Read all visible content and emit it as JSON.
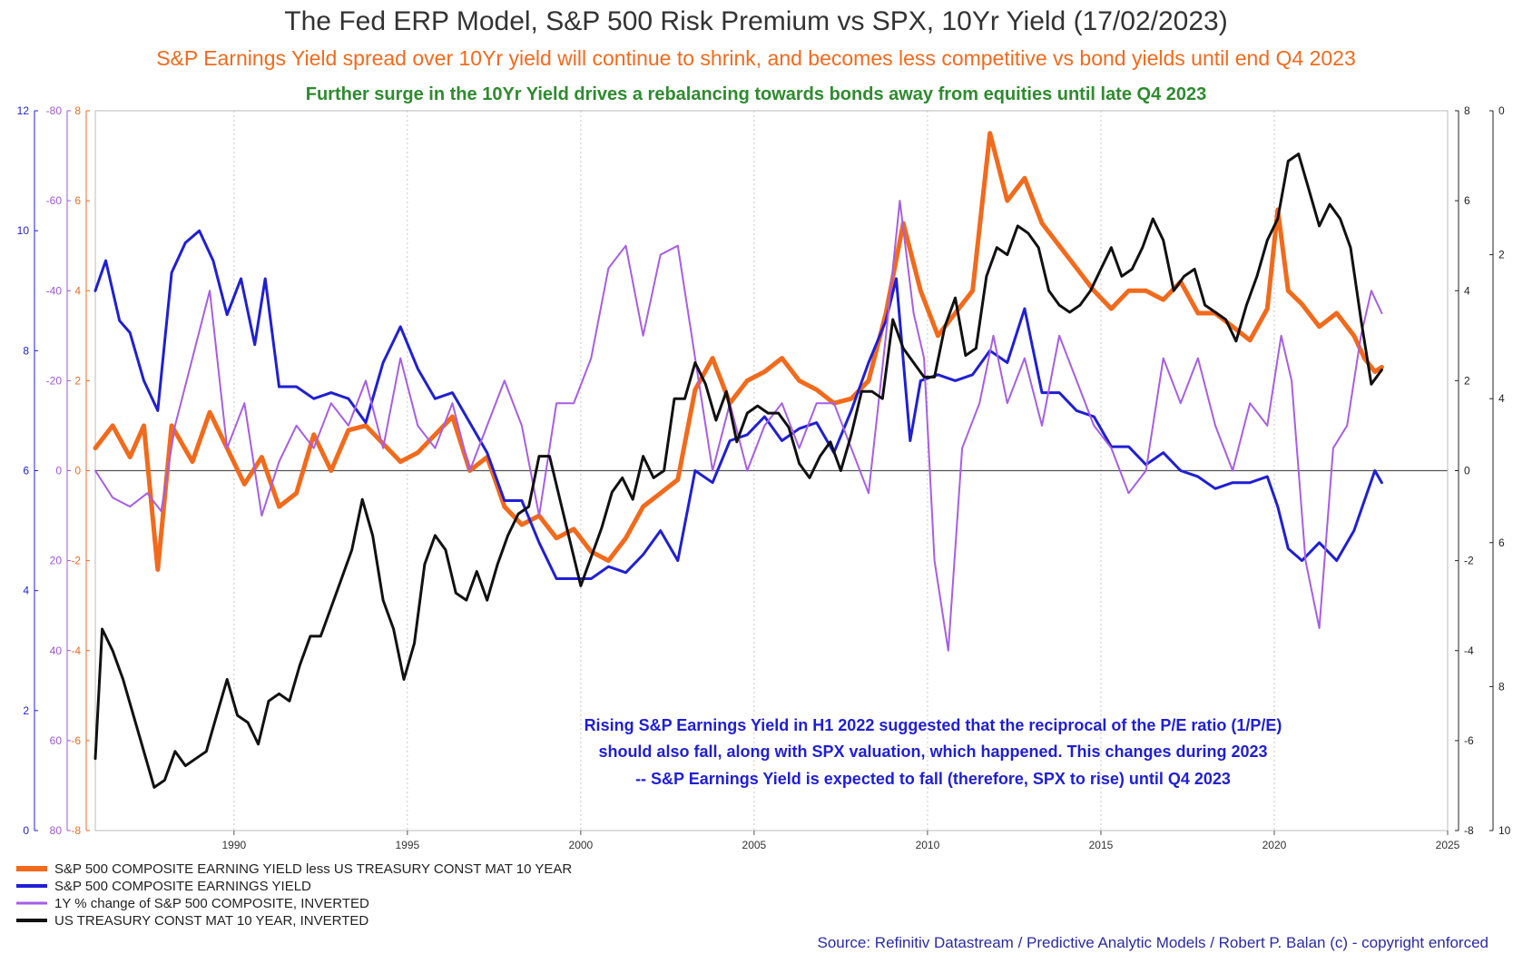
{
  "title": "The Fed ERP Model, S&P 500 Risk Premium vs SPX, 10Yr Yield (17/02/2023)",
  "subtitle": "S&P Earnings Yield spread over 10Yr yield will continue to shrink, and becomes less competitive vs bond yields until end Q4 2023",
  "subtitle2": "Further surge in the 10Yr Yield drives a rebalancing towards bonds away from equities until late Q4 2023",
  "annotation": [
    "Rising S&P Earnings Yield in H1 2022 suggested that the reciprocal of the P/E ratio (1/P/E)",
    "should also fall, along with SPX valuation, which happened. This changes during 2023",
    "-- S&P Earnings Yield is expected to fall (therefore, SPX to rise) until Q4 2023"
  ],
  "source": "Source: Refinitiv Datastream / Predictive Analytic Models / Robert P. Balan (c) - copyright enforced",
  "chart_data": {
    "type": "line",
    "xlim": [
      1986,
      2025
    ],
    "x_ticks": [
      "1990",
      "1995",
      "2000",
      "2005",
      "2010",
      "2015",
      "2020",
      "2025"
    ],
    "axes": {
      "earnings_yield": {
        "side": "left-outer",
        "color": "#1f1fd6",
        "ylim": [
          0,
          12
        ],
        "ticks": [
          "0",
          "2",
          "4",
          "6",
          "8",
          "10",
          "12"
        ]
      },
      "pct_change_inverted": {
        "side": "left-middle",
        "color": "#9b59d6",
        "ylim": [
          80,
          -80
        ],
        "ticks": [
          "80",
          "60",
          "40",
          "20",
          "0",
          "-20",
          "-40",
          "-60",
          "-80"
        ]
      },
      "spread": {
        "side": "left-inner",
        "color": "#f26a1b",
        "ylim": [
          -8,
          8
        ],
        "ticks": [
          "-8",
          "-6",
          "-4",
          "-2",
          "0",
          "2",
          "4",
          "6",
          "8"
        ]
      },
      "right_inner": {
        "side": "right-inner",
        "color": "#222222",
        "ylim": [
          -8,
          8
        ],
        "ticks": [
          "-8",
          "-6",
          "-4",
          "-2",
          "0",
          "2",
          "4",
          "6",
          "8"
        ]
      },
      "treasury_inverted": {
        "side": "right-outer",
        "color": "#222222",
        "ylim": [
          10,
          0
        ],
        "ticks": [
          "10",
          "8",
          "6",
          "4",
          "2",
          "0"
        ]
      }
    },
    "zero_line": true,
    "grid": "vertical dotted",
    "legend_position": "bottom-left",
    "series": [
      {
        "name": "S&P 500 COMPOSITE EARNING YIELD less US TREASURY CONST MAT 10 YEAR",
        "color": "#f26a1b",
        "axis": "spread",
        "width": 5,
        "x": [
          1986.0,
          1986.5,
          1987.0,
          1987.4,
          1987.8,
          1988.2,
          1988.8,
          1989.3,
          1989.8,
          1990.3,
          1990.8,
          1991.3,
          1991.8,
          1992.3,
          1992.8,
          1993.3,
          1993.8,
          1994.3,
          1994.8,
          1995.3,
          1995.8,
          1996.3,
          1996.8,
          1997.3,
          1997.8,
          1998.3,
          1998.8,
          1999.3,
          1999.8,
          2000.3,
          2000.8,
          2001.3,
          2001.8,
          2002.3,
          2002.8,
          2003.3,
          2003.8,
          2004.3,
          2004.8,
          2005.3,
          2005.8,
          2006.3,
          2006.8,
          2007.3,
          2007.8,
          2008.3,
          2008.8,
          2009.3,
          2009.8,
          2010.3,
          2010.8,
          2011.3,
          2011.8,
          2012.3,
          2012.8,
          2013.3,
          2013.8,
          2014.3,
          2014.8,
          2015.3,
          2015.8,
          2016.3,
          2016.8,
          2017.3,
          2017.8,
          2018.3,
          2018.8,
          2019.3,
          2019.8,
          2020.1,
          2020.4,
          2020.8,
          2021.3,
          2021.8,
          2022.3,
          2022.6,
          2022.9,
          2023.1
        ],
        "y": [
          0.5,
          1.0,
          0.3,
          1.0,
          -2.2,
          1.0,
          0.2,
          1.3,
          0.5,
          -0.3,
          0.3,
          -0.8,
          -0.5,
          0.8,
          0.0,
          0.9,
          1.0,
          0.6,
          0.2,
          0.4,
          0.8,
          1.2,
          0.0,
          0.3,
          -0.8,
          -1.2,
          -1.0,
          -1.5,
          -1.3,
          -1.8,
          -2.0,
          -1.5,
          -0.8,
          -0.5,
          -0.2,
          1.8,
          2.5,
          1.5,
          2.0,
          2.2,
          2.5,
          2.0,
          1.8,
          1.5,
          1.6,
          2.0,
          3.5,
          5.5,
          4.0,
          3.0,
          3.5,
          4.0,
          7.5,
          6.0,
          6.5,
          5.5,
          5.0,
          4.5,
          4.0,
          3.6,
          4.0,
          4.0,
          3.8,
          4.2,
          3.5,
          3.5,
          3.2,
          2.9,
          3.6,
          5.8,
          4.0,
          3.7,
          3.2,
          3.5,
          3.0,
          2.5,
          2.2,
          2.3
        ]
      },
      {
        "name": "S&P 500 COMPOSITE EARNINGS YIELD",
        "color": "#1f1fd6",
        "axis": "earnings_yield",
        "width": 3,
        "x": [
          1986.0,
          1986.3,
          1986.7,
          1987.0,
          1987.4,
          1987.8,
          1988.2,
          1988.6,
          1989.0,
          1989.4,
          1989.8,
          1990.2,
          1990.6,
          1990.9,
          1991.3,
          1991.8,
          1992.3,
          1992.8,
          1993.3,
          1993.8,
          1994.3,
          1994.8,
          1995.3,
          1995.8,
          1996.3,
          1996.8,
          1997.3,
          1997.8,
          1998.3,
          1998.8,
          1999.3,
          1999.8,
          2000.3,
          2000.8,
          2001.3,
          2001.8,
          2002.3,
          2002.8,
          2003.3,
          2003.8,
          2004.3,
          2004.8,
          2005.3,
          2005.8,
          2006.3,
          2006.8,
          2007.3,
          2007.8,
          2008.3,
          2008.8,
          2009.1,
          2009.5,
          2009.8,
          2010.3,
          2010.8,
          2011.3,
          2011.8,
          2012.3,
          2012.8,
          2013.3,
          2013.8,
          2014.3,
          2014.8,
          2015.3,
          2015.8,
          2016.3,
          2016.8,
          2017.3,
          2017.8,
          2018.3,
          2018.8,
          2019.3,
          2019.8,
          2020.1,
          2020.4,
          2020.8,
          2021.3,
          2021.8,
          2022.3,
          2022.6,
          2022.9,
          2023.1
        ],
        "y": [
          9.0,
          9.5,
          8.5,
          8.3,
          7.5,
          7.0,
          9.3,
          9.8,
          10.0,
          9.5,
          8.6,
          9.2,
          8.1,
          9.2,
          7.4,
          7.4,
          7.2,
          7.3,
          7.2,
          6.8,
          7.8,
          8.4,
          7.7,
          7.2,
          7.3,
          6.8,
          6.3,
          5.5,
          5.5,
          4.8,
          4.2,
          4.2,
          4.2,
          4.4,
          4.3,
          4.6,
          5.0,
          4.5,
          6.0,
          5.8,
          6.5,
          6.6,
          6.9,
          6.5,
          6.7,
          6.8,
          6.3,
          7.0,
          7.8,
          8.5,
          9.2,
          6.5,
          7.5,
          7.6,
          7.5,
          7.6,
          8.0,
          7.8,
          8.7,
          7.3,
          7.3,
          7.0,
          6.9,
          6.4,
          6.4,
          6.1,
          6.3,
          6.0,
          5.9,
          5.7,
          5.8,
          5.8,
          5.9,
          5.4,
          4.7,
          4.5,
          4.8,
          4.5,
          5.0,
          5.5,
          6.0,
          5.8
        ]
      },
      {
        "name": "1Y % change of S&P 500 COMPOSITE, INVERTED",
        "color": "#a65ee6",
        "axis": "pct_change_inverted",
        "width": 2,
        "x": [
          1986.0,
          1986.5,
          1987.0,
          1987.5,
          1987.9,
          1988.3,
          1988.8,
          1989.3,
          1989.8,
          1990.3,
          1990.8,
          1991.3,
          1991.8,
          1992.3,
          1992.8,
          1993.3,
          1993.8,
          1994.3,
          1994.8,
          1995.3,
          1995.8,
          1996.3,
          1996.8,
          1997.3,
          1997.8,
          1998.3,
          1998.8,
          1999.3,
          1999.8,
          2000.3,
          2000.8,
          2001.3,
          2001.8,
          2002.3,
          2002.8,
          2003.3,
          2003.8,
          2004.3,
          2004.8,
          2005.3,
          2005.8,
          2006.3,
          2006.8,
          2007.3,
          2007.8,
          2008.3,
          2008.8,
          2009.2,
          2009.6,
          2009.9,
          2010.2,
          2010.6,
          2011.0,
          2011.5,
          2011.9,
          2012.3,
          2012.8,
          2013.3,
          2013.8,
          2014.3,
          2014.8,
          2015.3,
          2015.8,
          2016.3,
          2016.8,
          2017.3,
          2017.8,
          2018.3,
          2018.8,
          2019.3,
          2019.8,
          2020.2,
          2020.5,
          2020.9,
          2021.3,
          2021.7,
          2022.1,
          2022.5,
          2022.8,
          2023.1
        ],
        "y": [
          0,
          6,
          8,
          5,
          9,
          -10,
          -25,
          -40,
          -5,
          -15,
          10,
          -2,
          -10,
          -5,
          -15,
          -10,
          -20,
          -5,
          -25,
          -10,
          -5,
          -15,
          0,
          -10,
          -20,
          -10,
          10,
          -15,
          -15,
          -25,
          -45,
          -50,
          -30,
          -48,
          -50,
          -25,
          0,
          -15,
          0,
          -10,
          -15,
          -5,
          -15,
          -15,
          -5,
          5,
          -30,
          -60,
          -35,
          -25,
          20,
          40,
          -5,
          -15,
          -30,
          -15,
          -25,
          -10,
          -30,
          -20,
          -10,
          -5,
          5,
          0,
          -25,
          -15,
          -25,
          -10,
          0,
          -15,
          -10,
          -30,
          -20,
          20,
          35,
          -5,
          -10,
          -30,
          -40,
          -35
        ]
      },
      {
        "name": "US TREASURY CONST MAT 10 YEAR, INVERTED",
        "color": "#111111",
        "axis": "treasury_inverted",
        "width": 3,
        "x": [
          1986.0,
          1986.2,
          1986.5,
          1986.8,
          1987.1,
          1987.4,
          1987.7,
          1988.0,
          1988.3,
          1988.6,
          1988.9,
          1989.2,
          1989.5,
          1989.8,
          1990.1,
          1990.4,
          1990.7,
          1991.0,
          1991.3,
          1991.6,
          1991.9,
          1992.2,
          1992.5,
          1992.8,
          1993.1,
          1993.4,
          1993.7,
          1994.0,
          1994.3,
          1994.6,
          1994.9,
          1995.2,
          1995.5,
          1995.8,
          1996.1,
          1996.4,
          1996.7,
          1997.0,
          1997.3,
          1997.6,
          1997.9,
          1998.2,
          1998.5,
          1998.8,
          1999.1,
          1999.4,
          1999.7,
          2000.0,
          2000.3,
          2000.6,
          2000.9,
          2001.2,
          2001.5,
          2001.8,
          2002.1,
          2002.4,
          2002.7,
          2003.0,
          2003.3,
          2003.6,
          2003.9,
          2004.2,
          2004.5,
          2004.8,
          2005.1,
          2005.4,
          2005.7,
          2006.0,
          2006.3,
          2006.6,
          2006.9,
          2007.2,
          2007.5,
          2007.8,
          2008.1,
          2008.4,
          2008.7,
          2009.0,
          2009.3,
          2009.6,
          2009.9,
          2010.2,
          2010.5,
          2010.8,
          2011.1,
          2011.4,
          2011.7,
          2012.0,
          2012.3,
          2012.6,
          2012.9,
          2013.2,
          2013.5,
          2013.8,
          2014.1,
          2014.4,
          2014.7,
          2015.0,
          2015.3,
          2015.6,
          2015.9,
          2016.2,
          2016.5,
          2016.8,
          2017.1,
          2017.4,
          2017.7,
          2018.0,
          2018.3,
          2018.6,
          2018.9,
          2019.2,
          2019.5,
          2019.8,
          2020.1,
          2020.4,
          2020.7,
          2021.0,
          2021.3,
          2021.6,
          2021.9,
          2022.2,
          2022.5,
          2022.8,
          2023.1
        ],
        "y": [
          9.0,
          7.2,
          7.5,
          7.9,
          8.4,
          8.9,
          9.4,
          9.3,
          8.9,
          9.1,
          9.0,
          8.9,
          8.4,
          7.9,
          8.4,
          8.5,
          8.8,
          8.2,
          8.1,
          8.2,
          7.7,
          7.3,
          7.3,
          6.9,
          6.5,
          6.1,
          5.4,
          5.9,
          6.8,
          7.2,
          7.9,
          7.4,
          6.3,
          5.9,
          6.1,
          6.7,
          6.8,
          6.4,
          6.8,
          6.3,
          5.9,
          5.6,
          5.5,
          4.8,
          4.8,
          5.4,
          6.0,
          6.6,
          6.2,
          5.8,
          5.3,
          5.1,
          5.4,
          4.8,
          5.1,
          5.0,
          4.0,
          4.0,
          3.5,
          3.8,
          4.3,
          3.9,
          4.6,
          4.2,
          4.1,
          4.2,
          4.2,
          4.4,
          4.9,
          5.1,
          4.8,
          4.6,
          5.0,
          4.5,
          3.9,
          3.9,
          4.0,
          2.9,
          3.3,
          3.5,
          3.7,
          3.7,
          3.0,
          2.6,
          3.4,
          3.3,
          2.3,
          1.9,
          2.0,
          1.6,
          1.7,
          1.9,
          2.5,
          2.7,
          2.8,
          2.7,
          2.5,
          2.2,
          1.9,
          2.3,
          2.2,
          1.9,
          1.5,
          1.8,
          2.5,
          2.3,
          2.2,
          2.7,
          2.8,
          2.9,
          3.2,
          2.7,
          2.3,
          1.8,
          1.5,
          0.7,
          0.6,
          1.1,
          1.6,
          1.3,
          1.5,
          1.9,
          2.9,
          3.8,
          3.6
        ]
      }
    ]
  },
  "legend": [
    {
      "label": "S&P 500 COMPOSITE EARNING YIELD less US TREASURY CONST MAT 10 YEAR",
      "color": "#f26a1b"
    },
    {
      "label": "S&P 500 COMPOSITE EARNINGS YIELD",
      "color": "#1f1fd6"
    },
    {
      "label": "1Y % change of S&P 500 COMPOSITE, INVERTED",
      "color": "#a65ee6"
    },
    {
      "label": "US TREASURY CONST MAT 10 YEAR, INVERTED",
      "color": "#111111"
    }
  ]
}
